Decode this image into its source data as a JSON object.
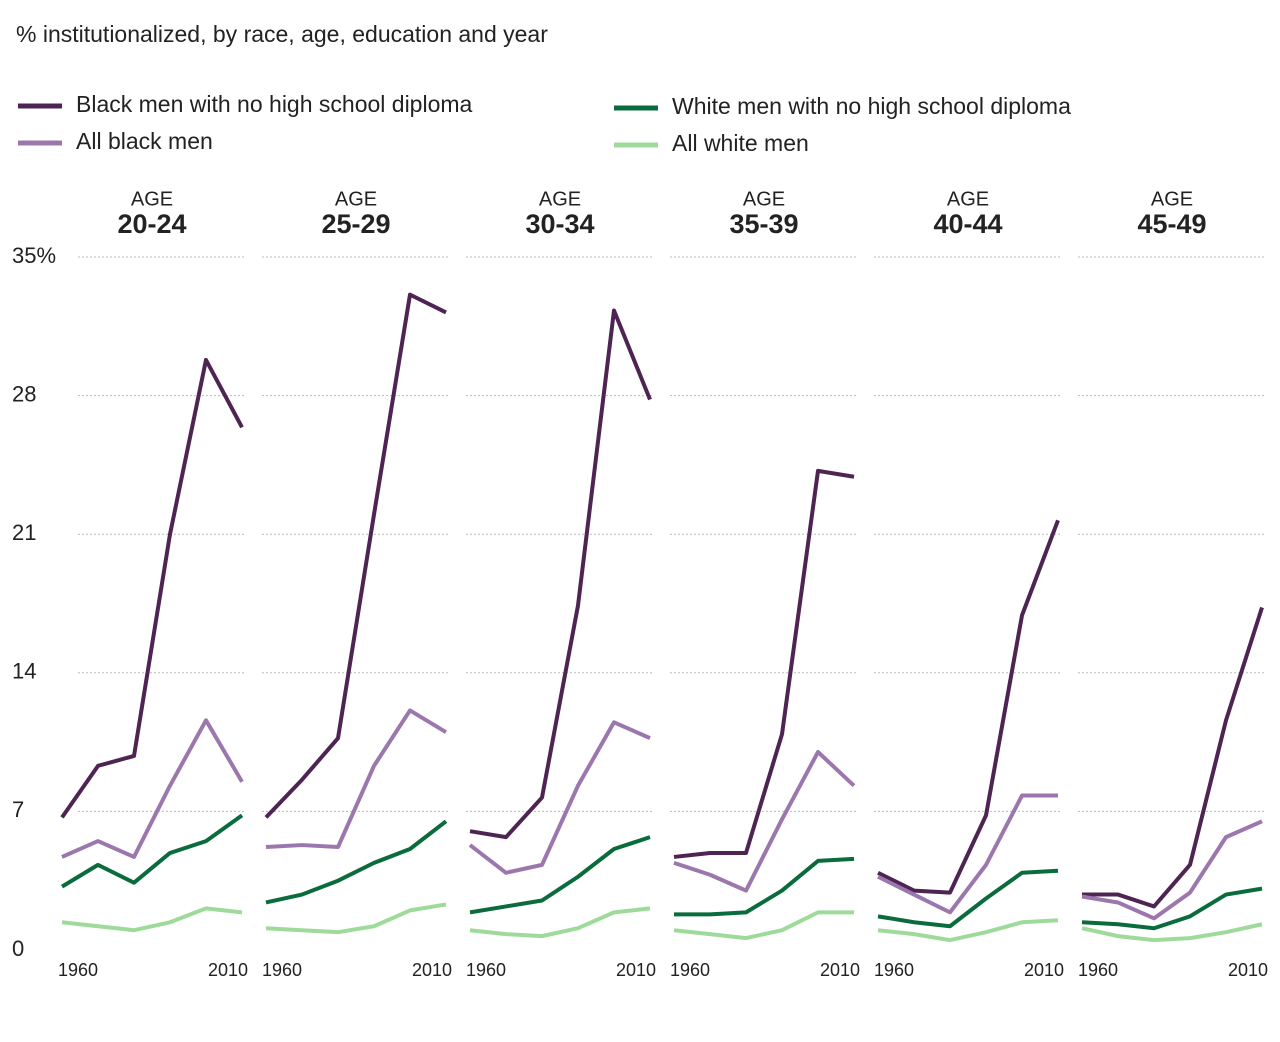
{
  "chart_data": [
    {
      "type": "line",
      "subtitle": "% institutionalized, by race, age, education and year",
      "supertitle": "AGE",
      "title": "20-24",
      "x": [
        1960,
        1970,
        1980,
        1990,
        2000,
        2010
      ],
      "xlim": [
        1960,
        2010
      ],
      "xticks": [
        1960,
        2010
      ],
      "ylim": [
        0,
        35
      ],
      "yticks": [
        0,
        7,
        14,
        21,
        28,
        {
          "value": 35,
          "label": "35%"
        }
      ],
      "grid": true,
      "series": [
        {
          "name": "Black men with no high school diploma",
          "color": "#4e2452",
          "values": [
            6.7,
            9.3,
            9.8,
            21.0,
            29.8,
            26.4
          ]
        },
        {
          "name": "All black men",
          "color": "#9b77ad",
          "values": [
            4.7,
            5.5,
            4.7,
            8.3,
            11.6,
            8.5
          ]
        },
        {
          "name": "White men with no high school diploma",
          "color": "#0a6b3c",
          "values": [
            3.2,
            4.3,
            3.4,
            4.9,
            5.5,
            6.8
          ]
        },
        {
          "name": "All white men",
          "color": "#9edb9a",
          "values": [
            1.4,
            1.2,
            1.0,
            1.4,
            2.1,
            1.9
          ]
        }
      ]
    },
    {
      "type": "line",
      "supertitle": "AGE",
      "title": "25-29",
      "x": [
        1960,
        1970,
        1980,
        1990,
        2000,
        2010
      ],
      "xlim": [
        1960,
        2010
      ],
      "xticks": [
        1960,
        2010
      ],
      "ylim": [
        0,
        35
      ],
      "series": [
        {
          "color": "#4e2452",
          "values": [
            6.7,
            8.6,
            10.7,
            22.0,
            33.1,
            32.2
          ]
        },
        {
          "color": "#9b77ad",
          "values": [
            5.2,
            5.3,
            5.2,
            9.3,
            12.1,
            11.0
          ]
        },
        {
          "color": "#0a6b3c",
          "values": [
            2.4,
            2.8,
            3.5,
            4.4,
            5.1,
            6.5
          ]
        },
        {
          "color": "#9edb9a",
          "values": [
            1.1,
            1.0,
            0.9,
            1.2,
            2.0,
            2.3
          ]
        }
      ]
    },
    {
      "type": "line",
      "supertitle": "AGE",
      "title": "30-34",
      "x": [
        1960,
        1970,
        1980,
        1990,
        2000,
        2010
      ],
      "xlim": [
        1960,
        2010
      ],
      "xticks": [
        1960,
        2010
      ],
      "ylim": [
        0,
        35
      ],
      "series": [
        {
          "color": "#4e2452",
          "values": [
            6.0,
            5.7,
            7.7,
            17.4,
            32.3,
            27.8
          ]
        },
        {
          "color": "#9b77ad",
          "values": [
            5.3,
            3.9,
            4.3,
            8.3,
            11.5,
            10.7
          ]
        },
        {
          "color": "#0a6b3c",
          "values": [
            1.9,
            2.2,
            2.5,
            3.7,
            5.1,
            5.7
          ]
        },
        {
          "color": "#9edb9a",
          "values": [
            1.0,
            0.8,
            0.7,
            1.1,
            1.9,
            2.1
          ]
        }
      ]
    },
    {
      "type": "line",
      "supertitle": "AGE",
      "title": "35-39",
      "x": [
        1960,
        1970,
        1980,
        1990,
        2000,
        2010
      ],
      "xlim": [
        1960,
        2010
      ],
      "xticks": [
        1960,
        2010
      ],
      "ylim": [
        0,
        35
      ],
      "series": [
        {
          "color": "#4e2452",
          "values": [
            4.7,
            4.9,
            4.9,
            10.9,
            24.2,
            23.9
          ]
        },
        {
          "color": "#9b77ad",
          "values": [
            4.4,
            3.8,
            3.0,
            6.6,
            10.0,
            8.3
          ]
        },
        {
          "color": "#0a6b3c",
          "values": [
            1.8,
            1.8,
            1.9,
            3.0,
            4.5,
            4.6
          ]
        },
        {
          "color": "#9edb9a",
          "values": [
            1.0,
            0.8,
            0.6,
            1.0,
            1.9,
            1.9
          ]
        }
      ]
    },
    {
      "type": "line",
      "supertitle": "AGE",
      "title": "40-44",
      "x": [
        1960,
        1970,
        1980,
        1990,
        2000,
        2010
      ],
      "xlim": [
        1960,
        2010
      ],
      "xticks": [
        1960,
        2010
      ],
      "ylim": [
        0,
        35
      ],
      "series": [
        {
          "color": "#4e2452",
          "values": [
            3.9,
            3.0,
            2.9,
            6.8,
            16.9,
            21.7
          ]
        },
        {
          "color": "#9b77ad",
          "values": [
            3.7,
            2.8,
            1.9,
            4.3,
            7.8,
            7.8
          ]
        },
        {
          "color": "#0a6b3c",
          "values": [
            1.7,
            1.4,
            1.2,
            2.6,
            3.9,
            4.0
          ]
        },
        {
          "color": "#9edb9a",
          "values": [
            1.0,
            0.8,
            0.5,
            0.9,
            1.4,
            1.5
          ]
        }
      ]
    },
    {
      "type": "line",
      "supertitle": "AGE",
      "title": "45-49",
      "x": [
        1960,
        1970,
        1980,
        1990,
        2000,
        2010
      ],
      "xlim": [
        1960,
        2010
      ],
      "xticks": [
        1960,
        2010
      ],
      "ylim": [
        0,
        35
      ],
      "series": [
        {
          "color": "#4e2452",
          "values": [
            2.8,
            2.8,
            2.2,
            4.3,
            11.6,
            17.3
          ]
        },
        {
          "color": "#9b77ad",
          "values": [
            2.7,
            2.4,
            1.6,
            2.9,
            5.7,
            6.5
          ]
        },
        {
          "color": "#0a6b3c",
          "values": [
            1.4,
            1.3,
            1.1,
            1.7,
            2.8,
            3.1
          ]
        },
        {
          "color": "#9edb9a",
          "values": [
            1.1,
            0.7,
            0.5,
            0.6,
            0.9,
            1.3
          ]
        }
      ]
    }
  ]
}
